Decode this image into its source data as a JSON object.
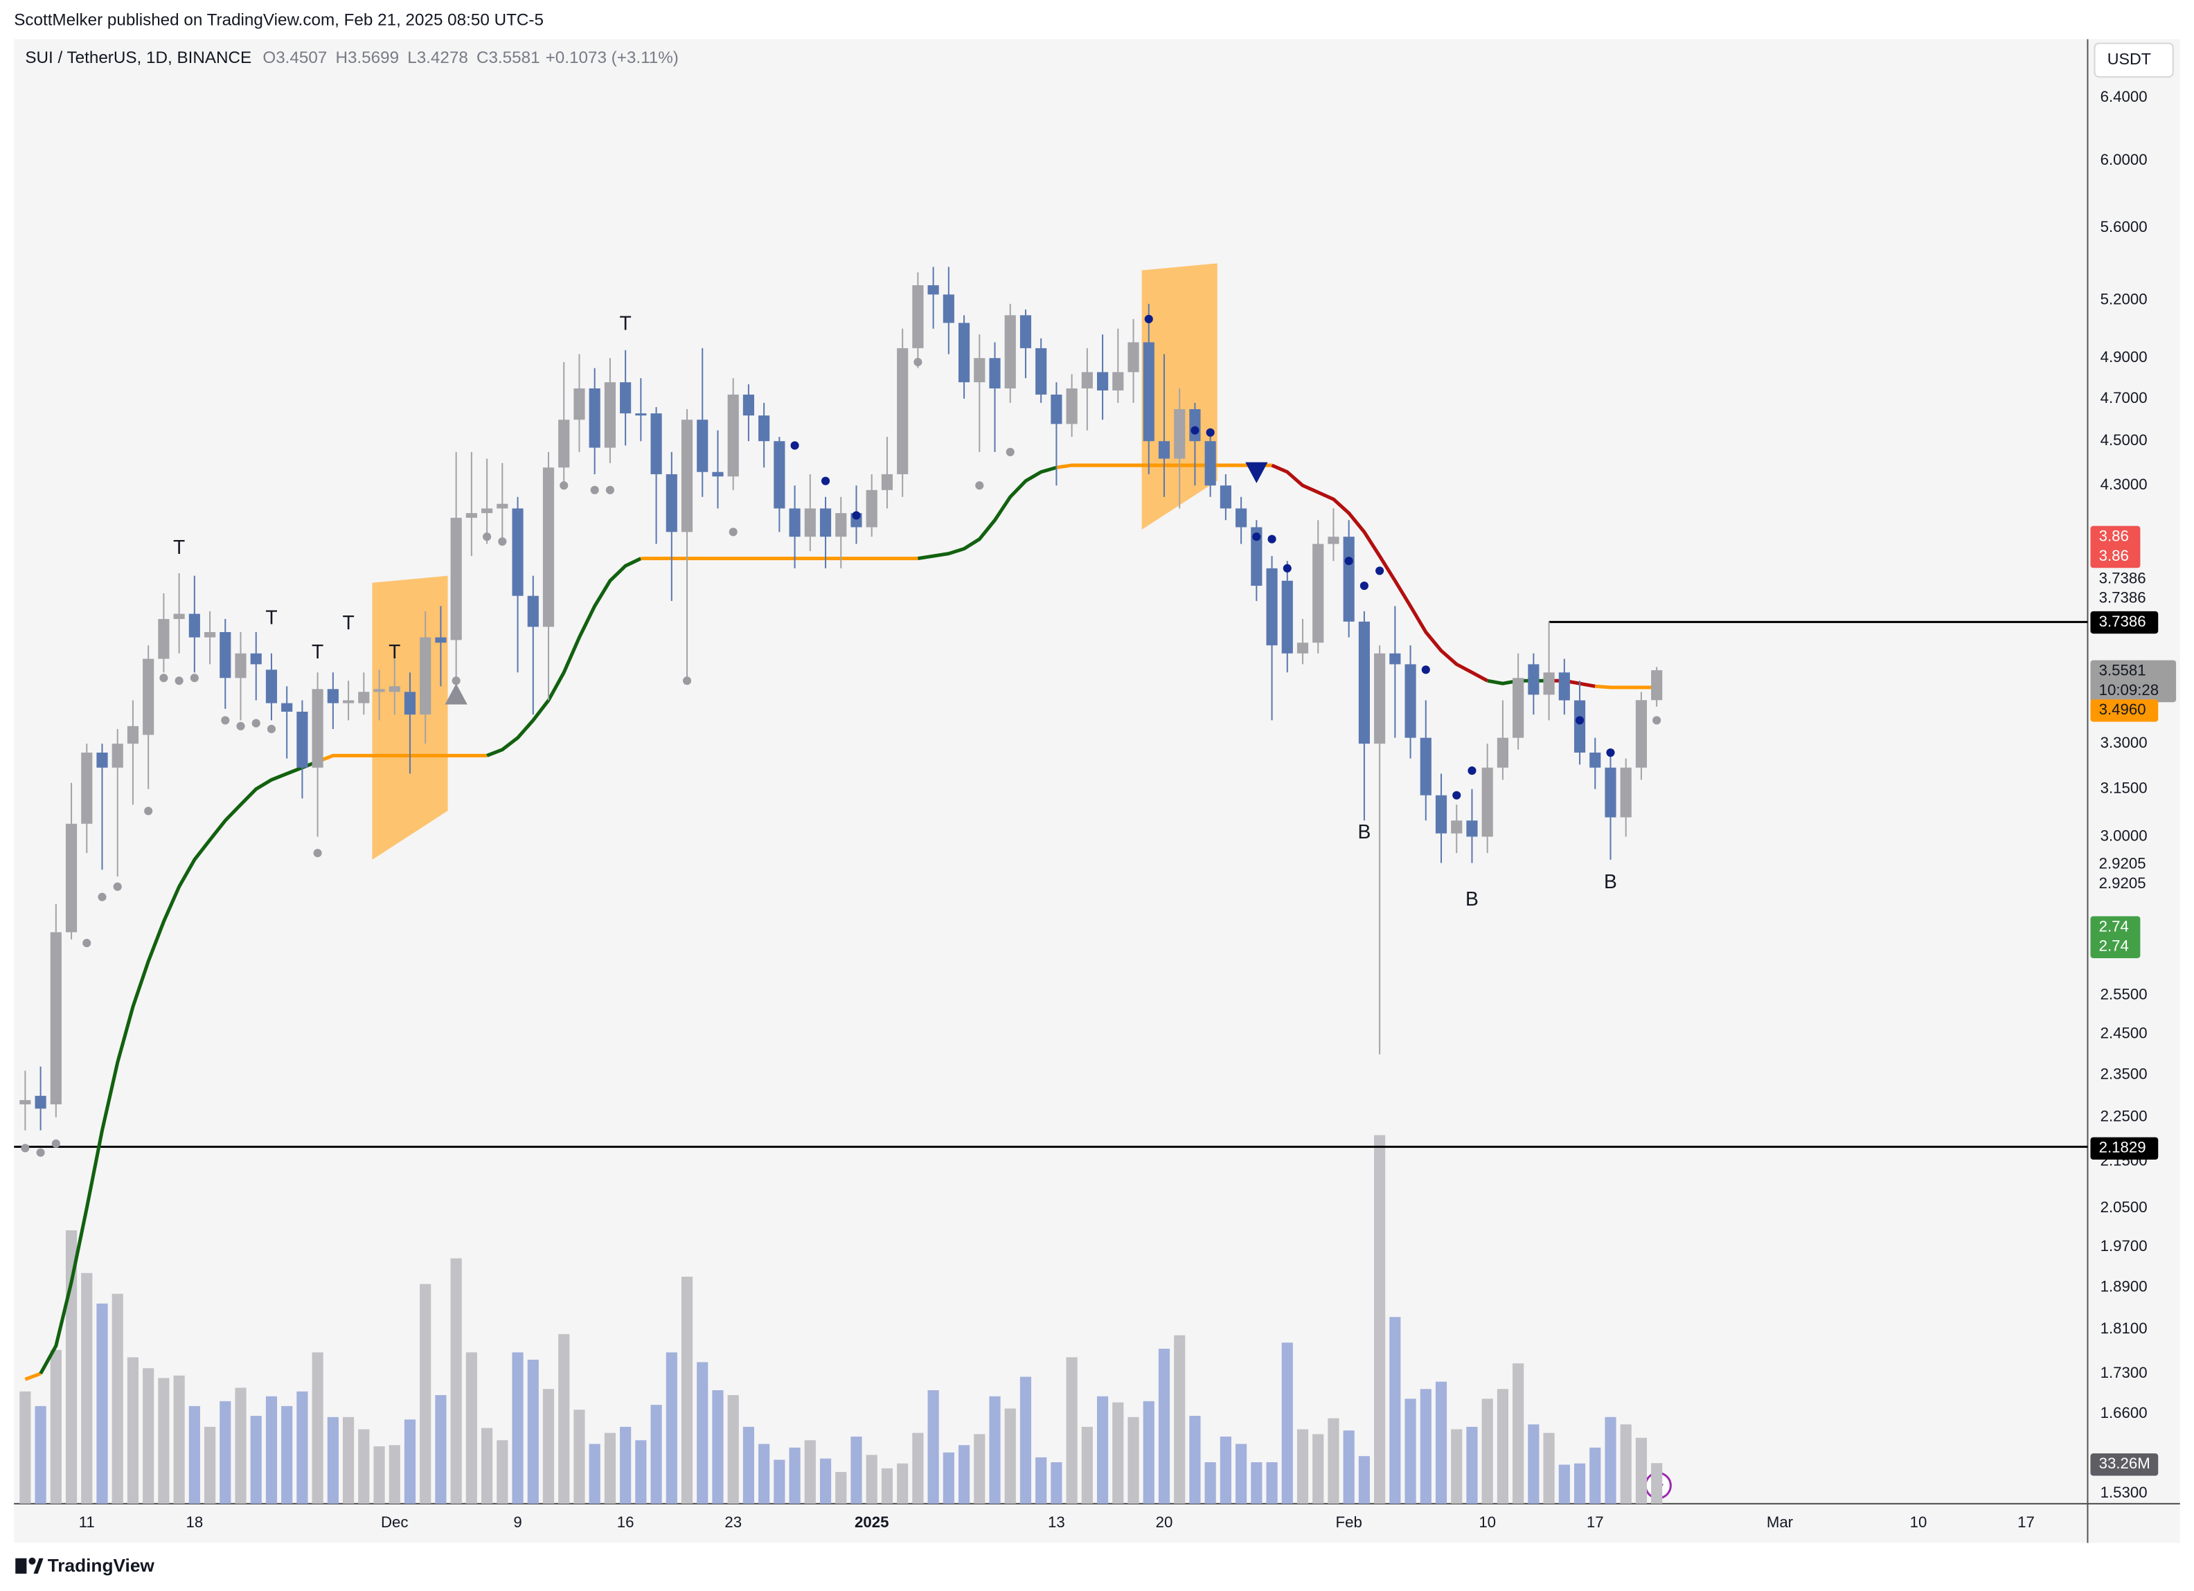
{
  "header": "ScottMelker published on TradingView.com, Feb 21, 2025 08:50 UTC-5",
  "footer": "TradingView",
  "chart_data": {
    "type": "candlestick",
    "currency": "USDT",
    "legend": {
      "symbol": "SUI / TetherUS, 1D, BINANCE",
      "fields": [
        "O3.4507",
        "H3.5699",
        "L3.4278",
        "C3.5581",
        "+0.1073 (+3.11%)"
      ]
    },
    "log_scale": true,
    "grid": false,
    "ylim": [
      1.514,
      6.795
    ],
    "yticks": [
      {
        "value": 6.4,
        "label": "6.4000"
      },
      {
        "value": 6.0,
        "label": "6.0000"
      },
      {
        "value": 5.6,
        "label": "5.6000"
      },
      {
        "value": 5.2,
        "label": "5.2000"
      },
      {
        "value": 4.9,
        "label": "4.9000"
      },
      {
        "value": 4.7,
        "label": "4.7000"
      },
      {
        "value": 4.5,
        "label": "4.5000"
      },
      {
        "value": 4.3,
        "label": "4.3000"
      },
      {
        "value": 3.3,
        "label": "3.3000"
      },
      {
        "value": 3.15,
        "label": "3.1500"
      },
      {
        "value": 3.0,
        "label": "3.0000"
      },
      {
        "value": 2.55,
        "label": "2.5500"
      },
      {
        "value": 2.45,
        "label": "2.4500"
      },
      {
        "value": 2.35,
        "label": "2.3500"
      },
      {
        "value": 2.25,
        "label": "2.2500"
      },
      {
        "value": 2.15,
        "label": "2.1500"
      },
      {
        "value": 2.05,
        "label": "2.0500"
      },
      {
        "value": 1.97,
        "label": "1.9700"
      },
      {
        "value": 1.89,
        "label": "1.8900"
      },
      {
        "value": 1.81,
        "label": "1.8100"
      },
      {
        "value": 1.73,
        "label": "1.7300"
      },
      {
        "value": 1.66,
        "label": "1.6600"
      },
      {
        "value": 1.53,
        "label": "1.5300"
      }
    ],
    "xticks": [
      {
        "value": "2024-11-11",
        "label": "11"
      },
      {
        "value": "2024-11-18",
        "label": "18"
      },
      {
        "value": "2024-12-01",
        "label": "Dec"
      },
      {
        "value": "2024-12-09",
        "label": "9"
      },
      {
        "value": "2024-12-16",
        "label": "16"
      },
      {
        "value": "2024-12-23",
        "label": "23"
      },
      {
        "value": "2025-01-01",
        "label": "2025",
        "bold": true
      },
      {
        "value": "2025-01-13",
        "label": "13"
      },
      {
        "value": "2025-01-20",
        "label": "20"
      },
      {
        "value": "2025-02-01",
        "label": "Feb"
      },
      {
        "value": "2025-02-10",
        "label": "10"
      },
      {
        "value": "2025-02-17",
        "label": "17"
      },
      {
        "value": "2025-03-01",
        "label": "Mar"
      },
      {
        "value": "2025-03-10",
        "label": "10"
      },
      {
        "value": "2025-03-17",
        "label": "17"
      }
    ],
    "candles": {
      "start": "2024-11-07",
      "up_color": "#a3a3a8",
      "down_color": "#5a78b0",
      "open": [
        2.28,
        2.3,
        2.28,
        2.72,
        3.04,
        3.27,
        3.22,
        3.3,
        3.33,
        3.6,
        3.75,
        3.77,
        3.68,
        3.7,
        3.53,
        3.62,
        3.56,
        3.44,
        3.41,
        3.22,
        3.49,
        3.44,
        3.44,
        3.48,
        3.48,
        3.48,
        3.4,
        3.68,
        3.67,
        4.16,
        4.18,
        4.2,
        4.2,
        3.84,
        3.72,
        4.38,
        4.6,
        4.75,
        4.47,
        4.78,
        4.63,
        4.63,
        4.35,
        4.1,
        4.6,
        4.36,
        4.34,
        4.72,
        4.62,
        4.5,
        4.2,
        4.08,
        4.2,
        4.08,
        4.18,
        4.12,
        4.28,
        4.35,
        4.95,
        5.28,
        5.23,
        5.08,
        4.78,
        4.9,
        4.75,
        5.12,
        4.95,
        4.72,
        4.58,
        4.75,
        4.83,
        4.74,
        4.83,
        4.98,
        4.5,
        4.42,
        4.65,
        4.5,
        4.3,
        4.2,
        4.12,
        3.95,
        3.9,
        3.62,
        3.66,
        4.05,
        4.08,
        3.74,
        3.3,
        3.62,
        3.58,
        3.32,
        3.13,
        3.01,
        3.05,
        3.0,
        3.22,
        3.32,
        3.58,
        3.47,
        3.55,
        3.45,
        3.27,
        3.22,
        3.06,
        3.22,
        3.4507
      ],
      "high": [
        2.36,
        2.37,
        2.8,
        3.17,
        3.3,
        3.3,
        3.35,
        3.45,
        3.65,
        3.85,
        3.93,
        3.92,
        3.78,
        3.75,
        3.7,
        3.7,
        3.62,
        3.5,
        3.45,
        3.55,
        3.55,
        3.52,
        3.55,
        3.56,
        3.6,
        3.55,
        3.78,
        3.8,
        4.45,
        4.45,
        4.42,
        4.4,
        4.25,
        3.92,
        4.45,
        4.88,
        4.92,
        4.85,
        4.9,
        4.94,
        4.8,
        4.66,
        4.45,
        4.65,
        4.95,
        4.55,
        4.8,
        4.77,
        4.68,
        4.52,
        4.3,
        4.35,
        4.25,
        4.25,
        4.3,
        4.35,
        4.52,
        5.05,
        5.35,
        5.38,
        5.38,
        5.12,
        5.02,
        4.98,
        5.18,
        5.15,
        5.0,
        4.78,
        4.82,
        4.95,
        5.02,
        5.05,
        5.1,
        5.18,
        4.92,
        4.75,
        4.68,
        4.55,
        4.35,
        4.25,
        4.15,
        4.0,
        3.98,
        3.75,
        4.15,
        4.2,
        4.15,
        3.78,
        3.65,
        3.8,
        3.65,
        3.45,
        3.2,
        3.1,
        3.15,
        3.3,
        3.45,
        3.62,
        3.62,
        3.74,
        3.6,
        3.52,
        3.32,
        3.26,
        3.25,
        3.48,
        3.5699
      ],
      "low": [
        2.22,
        2.22,
        2.25,
        2.7,
        2.95,
        2.9,
        2.88,
        3.1,
        3.15,
        3.55,
        3.62,
        3.55,
        3.58,
        3.42,
        3.38,
        3.45,
        3.38,
        3.25,
        3.12,
        3.0,
        3.35,
        3.38,
        3.4,
        3.38,
        3.4,
        3.2,
        3.3,
        3.5,
        3.5,
        4.0,
        4.05,
        4.05,
        3.55,
        3.4,
        3.45,
        4.3,
        4.45,
        4.35,
        4.4,
        4.48,
        4.5,
        4.05,
        3.82,
        3.52,
        4.25,
        4.2,
        4.28,
        4.5,
        4.38,
        4.1,
        3.95,
        4.02,
        3.95,
        3.95,
        4.05,
        4.08,
        4.2,
        4.25,
        4.85,
        5.05,
        4.92,
        4.7,
        4.45,
        4.45,
        4.68,
        4.8,
        4.68,
        4.3,
        4.52,
        4.55,
        4.6,
        4.68,
        4.68,
        4.35,
        4.25,
        4.2,
        4.3,
        4.25,
        4.15,
        4.05,
        3.82,
        3.38,
        3.55,
        3.58,
        3.62,
        3.98,
        3.68,
        3.05,
        2.4,
        3.32,
        3.25,
        3.05,
        2.92,
        2.95,
        2.92,
        2.95,
        3.18,
        3.28,
        3.4,
        3.38,
        3.4,
        3.23,
        3.15,
        2.93,
        3.0,
        3.18,
        3.4278
      ],
      "close": [
        2.29,
        2.27,
        2.72,
        3.04,
        3.27,
        3.22,
        3.3,
        3.36,
        3.6,
        3.75,
        3.77,
        3.68,
        3.7,
        3.53,
        3.62,
        3.58,
        3.44,
        3.41,
        3.22,
        3.49,
        3.44,
        3.45,
        3.48,
        3.49,
        3.5,
        3.4,
        3.68,
        3.66,
        4.16,
        4.18,
        4.2,
        4.22,
        3.84,
        3.72,
        4.38,
        4.6,
        4.75,
        4.47,
        4.78,
        4.63,
        4.62,
        4.35,
        4.1,
        4.6,
        4.36,
        4.34,
        4.72,
        4.62,
        4.5,
        4.2,
        4.08,
        4.2,
        4.08,
        4.18,
        4.12,
        4.28,
        4.35,
        4.95,
        5.28,
        5.23,
        5.08,
        4.78,
        4.9,
        4.75,
        5.12,
        4.95,
        4.72,
        4.58,
        4.75,
        4.83,
        4.74,
        4.83,
        4.98,
        4.5,
        4.42,
        4.65,
        4.5,
        4.3,
        4.2,
        4.12,
        3.88,
        3.65,
        3.62,
        3.66,
        4.05,
        4.08,
        3.74,
        3.3,
        3.62,
        3.58,
        3.32,
        3.13,
        3.01,
        3.05,
        3.0,
        3.22,
        3.32,
        3.53,
        3.47,
        3.55,
        3.45,
        3.27,
        3.22,
        3.06,
        3.22,
        3.4507,
        3.5581
      ]
    },
    "volume": [
      92,
      80,
      126,
      224,
      189,
      164,
      172,
      120,
      111,
      103,
      105,
      80,
      63,
      84,
      95,
      72,
      88,
      80,
      92,
      124,
      71,
      71,
      61,
      47,
      48,
      69,
      180,
      89,
      201,
      124,
      62,
      52,
      124,
      118,
      94,
      139,
      77,
      49,
      58,
      63,
      52,
      81,
      124,
      186,
      116,
      93,
      89,
      63,
      49,
      36,
      46,
      52,
      37,
      26,
      55,
      40,
      29,
      33,
      58,
      93,
      42,
      48,
      57,
      88,
      78,
      104,
      38,
      34,
      120,
      63,
      88,
      83,
      71,
      84,
      127,
      138,
      72,
      34,
      55,
      49,
      34,
      34,
      132,
      61,
      57,
      70,
      60,
      39,
      302,
      153,
      86,
      94,
      100,
      61,
      63,
      86,
      94,
      115,
      65,
      58,
      32,
      33,
      46,
      71,
      65,
      54,
      33.26
    ],
    "volume_lim": [
      0,
      1200
    ],
    "volume_colors": {
      "up": "#c1c1c6",
      "down": "#a2b0dc"
    },
    "trend": {
      "values": [
        1.72,
        1.73,
        1.78,
        1.9,
        2.05,
        2.22,
        2.38,
        2.52,
        2.64,
        2.75,
        2.85,
        2.93,
        2.99,
        3.05,
        3.1,
        3.15,
        3.18,
        3.2,
        3.22,
        3.24,
        3.26,
        3.26,
        3.26,
        3.26,
        3.26,
        3.26,
        3.26,
        3.26,
        3.26,
        3.26,
        3.26,
        3.28,
        3.32,
        3.38,
        3.45,
        3.55,
        3.68,
        3.8,
        3.9,
        3.96,
        3.99,
        3.99,
        3.99,
        3.99,
        3.99,
        3.99,
        3.99,
        3.99,
        3.99,
        3.99,
        3.99,
        3.99,
        3.99,
        3.99,
        3.99,
        3.99,
        3.99,
        3.99,
        3.99,
        4.0,
        4.01,
        4.03,
        4.07,
        4.15,
        4.25,
        4.32,
        4.36,
        4.38,
        4.39,
        4.39,
        4.39,
        4.39,
        4.39,
        4.39,
        4.39,
        4.39,
        4.39,
        4.39,
        4.39,
        4.39,
        4.39,
        4.39,
        4.36,
        4.3,
        4.27,
        4.24,
        4.18,
        4.1,
        4.0,
        3.9,
        3.8,
        3.7,
        3.63,
        3.58,
        3.55,
        3.52,
        3.51,
        3.52,
        3.52,
        3.52,
        3.52,
        3.51,
        3.5,
        3.496,
        3.496,
        3.496,
        3.496
      ],
      "states": [
        "f",
        "f",
        "u",
        "u",
        "u",
        "u",
        "u",
        "u",
        "u",
        "u",
        "u",
        "u",
        "u",
        "u",
        "u",
        "u",
        "u",
        "u",
        "u",
        "u",
        "f",
        "f",
        "f",
        "f",
        "f",
        "f",
        "f",
        "f",
        "f",
        "f",
        "f",
        "u",
        "u",
        "u",
        "u",
        "u",
        "u",
        "u",
        "u",
        "u",
        "u",
        "f",
        "f",
        "f",
        "f",
        "f",
        "f",
        "f",
        "f",
        "f",
        "f",
        "f",
        "f",
        "f",
        "f",
        "f",
        "f",
        "f",
        "f",
        "u",
        "u",
        "u",
        "u",
        "u",
        "u",
        "u",
        "u",
        "u",
        "f",
        "f",
        "f",
        "f",
        "f",
        "f",
        "f",
        "f",
        "f",
        "f",
        "f",
        "f",
        "f",
        "f",
        "d",
        "d",
        "d",
        "d",
        "d",
        "d",
        "d",
        "d",
        "d",
        "d",
        "d",
        "d",
        "d",
        "d",
        "u",
        "u",
        "u",
        "u",
        "d",
        "d",
        "d",
        "f",
        "f",
        "f",
        "f"
      ],
      "palette": {
        "u": "#12610f",
        "d": "#b30f0f",
        "f": "#ff9800"
      }
    },
    "zones": [
      {
        "from": "2024-11-30",
        "to": "2024-12-04",
        "low": 2.93,
        "high": 3.92,
        "color": "#ffb74d"
      },
      {
        "from": "2025-01-19",
        "to": "2025-01-23",
        "low": 4.11,
        "high": 5.4,
        "color": "#ffb74d"
      }
    ],
    "levels": [
      {
        "value": 3.7386,
        "from": "2025-02-14",
        "color": "#000000"
      },
      {
        "value": 2.1829,
        "color": "#000000"
      }
    ],
    "dots": [
      {
        "color": "#9a9aa0",
        "x": [
          "2024-11-07",
          "2024-11-08",
          "2024-11-09",
          "2024-11-11",
          "2024-11-12",
          "2024-11-13",
          "2024-11-15",
          "2024-11-16",
          "2024-11-17",
          "2024-11-18",
          "2024-11-20",
          "2024-11-21",
          "2024-11-22",
          "2024-11-23",
          "2024-11-26",
          "2024-12-05",
          "2024-12-07",
          "2024-12-08",
          "2024-12-12",
          "2024-12-14",
          "2024-12-15",
          "2024-12-20",
          "2024-12-23",
          "2025-01-04",
          "2025-01-08",
          "2025-01-10",
          "2025-02-21"
        ],
        "values": [
          2.18,
          2.17,
          2.19,
          2.69,
          2.82,
          2.85,
          3.08,
          3.53,
          3.52,
          3.53,
          3.38,
          3.36,
          3.37,
          3.35,
          2.95,
          3.52,
          4.08,
          4.06,
          4.3,
          4.28,
          4.28,
          3.52,
          4.1,
          4.88,
          4.3,
          4.45,
          3.38
        ]
      },
      {
        "color": "#0d1f8c",
        "x": [
          "2024-12-27",
          "2024-12-29",
          "2024-12-31",
          "2025-01-19",
          "2025-01-22",
          "2025-01-23",
          "2025-01-26",
          "2025-01-27",
          "2025-01-28",
          "2025-02-01",
          "2025-02-02",
          "2025-02-03",
          "2025-02-06",
          "2025-02-08",
          "2025-02-09",
          "2025-02-16",
          "2025-02-18"
        ],
        "values": [
          4.48,
          4.32,
          4.17,
          5.1,
          4.55,
          4.54,
          4.08,
          4.07,
          3.95,
          3.98,
          3.88,
          3.94,
          3.56,
          3.13,
          3.21,
          3.38,
          3.27
        ]
      }
    ],
    "annotations": [
      {
        "text": "T",
        "x": "2024-11-17",
        "value": 4.03,
        "color": "#ff9800"
      },
      {
        "text": "T",
        "x": "2024-11-23",
        "value": 3.75,
        "color": "#ff9800"
      },
      {
        "text": "T",
        "x": "2024-11-28",
        "value": 3.73,
        "color": "#ff9800"
      },
      {
        "text": "T",
        "x": "2024-11-26",
        "value": 3.62,
        "color": "#ff9800"
      },
      {
        "text": "T",
        "x": "2024-12-01",
        "value": 3.62,
        "color": "#ff9800"
      },
      {
        "text": "T",
        "x": "2024-12-16",
        "value": 5.07,
        "color": "#ff9800"
      },
      {
        "text": "B",
        "x": "2025-02-02",
        "value": 3.01,
        "color": "#1e6fd9"
      },
      {
        "text": "B",
        "x": "2025-02-09",
        "value": 2.81,
        "color": "#1e6fd9"
      },
      {
        "text": "B",
        "x": "2025-02-18",
        "value": 2.86,
        "color": "#1e6fd9"
      }
    ],
    "markers": [
      {
        "shape": "up",
        "x": "2024-12-05",
        "value": 3.47,
        "color": "#8e8e96"
      },
      {
        "shape": "down",
        "x": "2025-01-26",
        "value": 4.36,
        "color": "#0d1f8c"
      }
    ],
    "badges": [
      {
        "lines": [
          "3.86",
          "3.86"
        ],
        "bg": "#f05350",
        "fg": "#ffffff"
      },
      {
        "lines": [
          "3.7386",
          "3.7386"
        ],
        "fg": "#131722"
      },
      {
        "lines": [
          "3.7386"
        ],
        "bg": "#000000",
        "fg": "#ffffff"
      },
      {
        "lines": [
          "3.5581",
          "10:09:28"
        ],
        "bg": "#9e9e9e",
        "fg": "#131722"
      },
      {
        "lines": [
          "3.4960"
        ],
        "bg": "#ff9800",
        "fg": "#131722"
      },
      {
        "lines": [
          "2.9205",
          "2.9205"
        ],
        "fg": "#131722"
      },
      {
        "lines": [
          "2.74",
          "2.74"
        ],
        "bg": "#43a047",
        "fg": "#ffffff"
      },
      {
        "lines": [
          "2.1829"
        ],
        "bg": "#000000",
        "fg": "#ffffff"
      },
      {
        "lines": [
          "33.26M"
        ],
        "bg": "#5d5d63",
        "fg": "#ffffff"
      }
    ]
  }
}
